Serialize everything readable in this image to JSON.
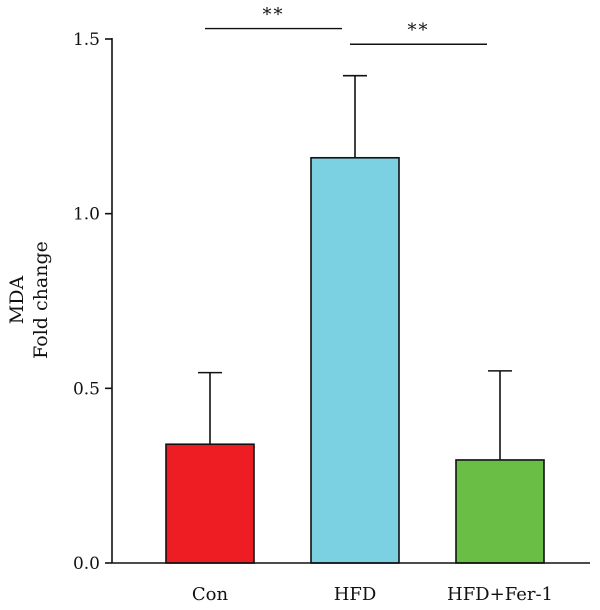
{
  "chart_data": {
    "type": "bar",
    "title": "",
    "xlabel": "",
    "ylabel_lines": [
      "MDA",
      "Fold change"
    ],
    "categories": [
      "Con",
      "HFD",
      "HFD+Fer-1"
    ],
    "values": [
      0.34,
      1.16,
      0.295
    ],
    "errors": [
      0.205,
      0.235,
      0.255
    ],
    "bar_colors": [
      "#ee1d23",
      "#7bd0e1",
      "#6abe45"
    ],
    "ylim": [
      0,
      1.5
    ],
    "yticks": [
      0.0,
      0.5,
      1.0,
      1.5
    ],
    "ytick_labels": [
      "0.0",
      "0.5",
      "1.0",
      "1.5"
    ],
    "grid": false,
    "significance": [
      {
        "from": 0,
        "to": 1,
        "label": "**",
        "level": 1.53
      },
      {
        "from": 1,
        "to": 2,
        "label": "**",
        "level": 1.485
      }
    ]
  }
}
